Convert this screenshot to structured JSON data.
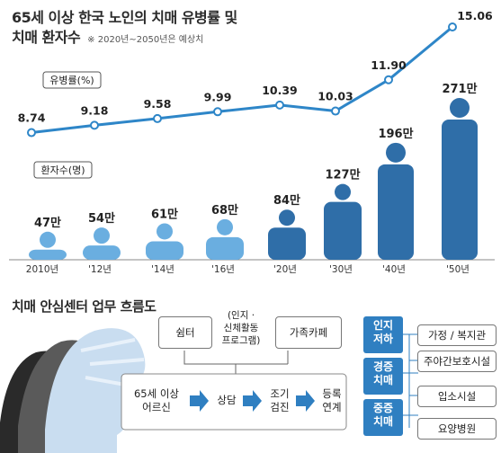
{
  "title": {
    "line1": "65세 이상 한국 노인의 치매 유병률 및",
    "line2": "치매 환자수",
    "note": "※ 2020년~2050년은 예상치"
  },
  "chart_data": {
    "type": "line+pictogram",
    "categories": [
      "2010년",
      "'12년",
      "'14년",
      "'16년",
      "'20년",
      "'30년",
      "'40년",
      "'50년"
    ],
    "series": [
      {
        "name": "유병률(%)",
        "type": "line",
        "values": [
          8.74,
          9.18,
          9.58,
          9.99,
          10.39,
          10.03,
          11.9,
          15.06
        ]
      },
      {
        "name": "환자수(명)",
        "type": "pictogram",
        "values": [
          47,
          54,
          61,
          68,
          84,
          127,
          196,
          271
        ],
        "labels": [
          "47만",
          "54만",
          "61만",
          "68만",
          "84만",
          "127만",
          "196만",
          "271만"
        ]
      }
    ],
    "line_labels": [
      "8.74",
      "9.18",
      "9.58",
      "9.99",
      "10.39",
      "10.03",
      "11.90",
      "15.06"
    ],
    "legend": {
      "rate": "유병률(%)",
      "count": "환자수(명)"
    },
    "colors": {
      "line": "#2e86c8",
      "light_figure": "#6aaee0",
      "dark_figure": "#2f6ea8"
    },
    "projected_from_index": 4
  },
  "flow": {
    "title": "치매 안심센터 업무 흐름도",
    "shelter": "쉼터",
    "shelter_note": [
      "(인지 ·",
      "신체활동",
      "프로그램)"
    ],
    "family_cafe": "가족카페",
    "steps": [
      [
        "65세 이상",
        "어르신"
      ],
      [
        "상담"
      ],
      [
        "조기",
        "검진"
      ],
      [
        "등록",
        "연계"
      ]
    ],
    "severity": [
      {
        "label": [
          "인지",
          "저하"
        ],
        "facilities": [
          "가정 / 복지관"
        ]
      },
      {
        "label": [
          "경증",
          "치매"
        ],
        "facilities": [
          "주야간보호시설",
          "입소시설"
        ]
      },
      {
        "label": [
          "중증",
          "치매"
        ],
        "facilities": [
          "요양병원"
        ]
      }
    ],
    "colors": {
      "accent": "#2f7fc1",
      "arrow": "#2f7fc1"
    }
  }
}
